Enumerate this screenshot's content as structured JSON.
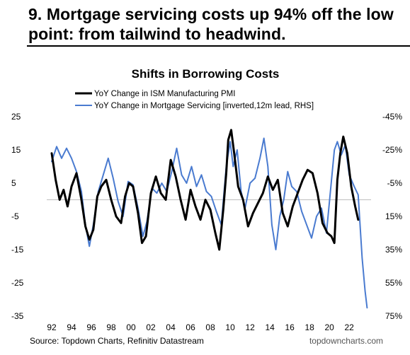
{
  "headline": "9. Mortgage servicing costs up 94% off the low point: from tailwind to headwind.",
  "chart_data": {
    "type": "line",
    "title": "Shifts in Borrowing Costs",
    "source": "Source: Topdown Charts, Refinitiv Datastream",
    "watermark": "topdowncharts.com",
    "x_tick_labels": [
      "92",
      "94",
      "96",
      "98",
      "00",
      "02",
      "04",
      "06",
      "08",
      "10",
      "12",
      "14",
      "16",
      "18",
      "20",
      "22"
    ],
    "x_range": [
      1991.5,
      2024.2
    ],
    "y_left": {
      "range": [
        -35,
        25
      ],
      "ticks": [
        25,
        15,
        5,
        -5,
        -15,
        -25,
        -35
      ]
    },
    "y_right": {
      "range": [
        75,
        -45
      ],
      "inverted": true,
      "ticks": [
        "-45%",
        "-25%",
        "-5%",
        "15%",
        "35%",
        "55%",
        "75%"
      ]
    },
    "zero_line": true,
    "legend_position": "top-left",
    "series": [
      {
        "name": "YoY Change in ISM Manufacturing PMI",
        "axis": "left",
        "color": "#000000",
        "width": 3,
        "points": [
          [
            1992.0,
            14
          ],
          [
            1992.4,
            6
          ],
          [
            1992.8,
            0
          ],
          [
            1993.2,
            3
          ],
          [
            1993.6,
            -2
          ],
          [
            1994.0,
            4
          ],
          [
            1994.5,
            8
          ],
          [
            1995.0,
            0
          ],
          [
            1995.4,
            -8
          ],
          [
            1995.8,
            -12
          ],
          [
            1996.2,
            -9
          ],
          [
            1996.6,
            1
          ],
          [
            1997.0,
            4
          ],
          [
            1997.5,
            6
          ],
          [
            1998.0,
            0
          ],
          [
            1998.5,
            -5
          ],
          [
            1999.0,
            -7
          ],
          [
            1999.4,
            1
          ],
          [
            1999.8,
            5
          ],
          [
            2000.2,
            4
          ],
          [
            2000.7,
            -4
          ],
          [
            2001.1,
            -13
          ],
          [
            2001.5,
            -11
          ],
          [
            2002.0,
            2
          ],
          [
            2002.5,
            7
          ],
          [
            2003.0,
            2
          ],
          [
            2003.5,
            0
          ],
          [
            2004.0,
            12
          ],
          [
            2004.5,
            7
          ],
          [
            2005.0,
            0
          ],
          [
            2005.5,
            -6
          ],
          [
            2006.0,
            3
          ],
          [
            2006.5,
            -2
          ],
          [
            2007.0,
            -6
          ],
          [
            2007.5,
            0
          ],
          [
            2008.0,
            -3
          ],
          [
            2008.5,
            -10
          ],
          [
            2008.9,
            -15
          ],
          [
            2009.3,
            -3
          ],
          [
            2009.6,
            8
          ],
          [
            2009.8,
            18
          ],
          [
            2010.1,
            21
          ],
          [
            2010.4,
            14
          ],
          [
            2010.8,
            4
          ],
          [
            2011.3,
            0
          ],
          [
            2011.8,
            -8
          ],
          [
            2012.3,
            -4
          ],
          [
            2012.8,
            -1
          ],
          [
            2013.3,
            2
          ],
          [
            2013.8,
            7
          ],
          [
            2014.3,
            3
          ],
          [
            2014.8,
            6
          ],
          [
            2015.3,
            -4
          ],
          [
            2015.8,
            -8
          ],
          [
            2016.3,
            -2
          ],
          [
            2016.8,
            2
          ],
          [
            2017.3,
            6
          ],
          [
            2017.8,
            9
          ],
          [
            2018.3,
            8
          ],
          [
            2018.8,
            2
          ],
          [
            2019.3,
            -7
          ],
          [
            2019.8,
            -10
          ],
          [
            2020.2,
            -11
          ],
          [
            2020.5,
            -13
          ],
          [
            2020.8,
            6
          ],
          [
            2021.1,
            14
          ],
          [
            2021.4,
            19
          ],
          [
            2021.8,
            14
          ],
          [
            2022.2,
            4
          ],
          [
            2022.6,
            -2
          ],
          [
            2022.9,
            -6
          ]
        ]
      },
      {
        "name": "YoY Change in Mortgage Servicing [inverted,12m lead, RHS]",
        "axis": "right",
        "color": "#4a7bd0",
        "width": 2,
        "points": [
          [
            1992.0,
            -18
          ],
          [
            1992.5,
            -27
          ],
          [
            1993.0,
            -20
          ],
          [
            1993.5,
            -26
          ],
          [
            1994.0,
            -20
          ],
          [
            1994.5,
            -12
          ],
          [
            1995.0,
            0
          ],
          [
            1995.4,
            20
          ],
          [
            1995.8,
            33
          ],
          [
            1996.2,
            20
          ],
          [
            1996.7,
            0
          ],
          [
            1997.2,
            -10
          ],
          [
            1997.7,
            -20
          ],
          [
            1998.2,
            -8
          ],
          [
            1998.7,
            6
          ],
          [
            1999.2,
            15
          ],
          [
            1999.7,
            -6
          ],
          [
            2000.2,
            -4
          ],
          [
            2000.7,
            10
          ],
          [
            2001.2,
            27
          ],
          [
            2001.6,
            18
          ],
          [
            2002.1,
            -2
          ],
          [
            2002.6,
            1
          ],
          [
            2003.1,
            -5
          ],
          [
            2003.6,
            0
          ],
          [
            2004.1,
            -12
          ],
          [
            2004.6,
            -26
          ],
          [
            2005.1,
            -10
          ],
          [
            2005.6,
            -5
          ],
          [
            2006.1,
            -15
          ],
          [
            2006.6,
            -3
          ],
          [
            2007.1,
            -10
          ],
          [
            2007.6,
            0
          ],
          [
            2008.1,
            3
          ],
          [
            2008.6,
            12
          ],
          [
            2009.1,
            20
          ],
          [
            2009.6,
            -15
          ],
          [
            2010.0,
            -30
          ],
          [
            2010.3,
            -15
          ],
          [
            2010.7,
            -25
          ],
          [
            2011.1,
            0
          ],
          [
            2011.5,
            10
          ],
          [
            2012.0,
            -5
          ],
          [
            2012.5,
            -8
          ],
          [
            2013.0,
            -20
          ],
          [
            2013.4,
            -32
          ],
          [
            2013.8,
            -15
          ],
          [
            2014.2,
            20
          ],
          [
            2014.6,
            35
          ],
          [
            2015.0,
            15
          ],
          [
            2015.4,
            5
          ],
          [
            2015.8,
            -12
          ],
          [
            2016.2,
            -3
          ],
          [
            2016.7,
            0
          ],
          [
            2017.2,
            12
          ],
          [
            2017.7,
            20
          ],
          [
            2018.2,
            28
          ],
          [
            2018.7,
            15
          ],
          [
            2019.2,
            10
          ],
          [
            2019.7,
            25
          ],
          [
            2020.1,
            0
          ],
          [
            2020.5,
            -25
          ],
          [
            2020.8,
            -30
          ],
          [
            2021.2,
            -22
          ],
          [
            2021.6,
            -28
          ],
          [
            2022.0,
            -10
          ],
          [
            2022.5,
            -3
          ],
          [
            2022.9,
            2
          ],
          [
            2023.3,
            40
          ],
          [
            2023.6,
            60
          ],
          [
            2023.8,
            70
          ]
        ]
      }
    ]
  }
}
